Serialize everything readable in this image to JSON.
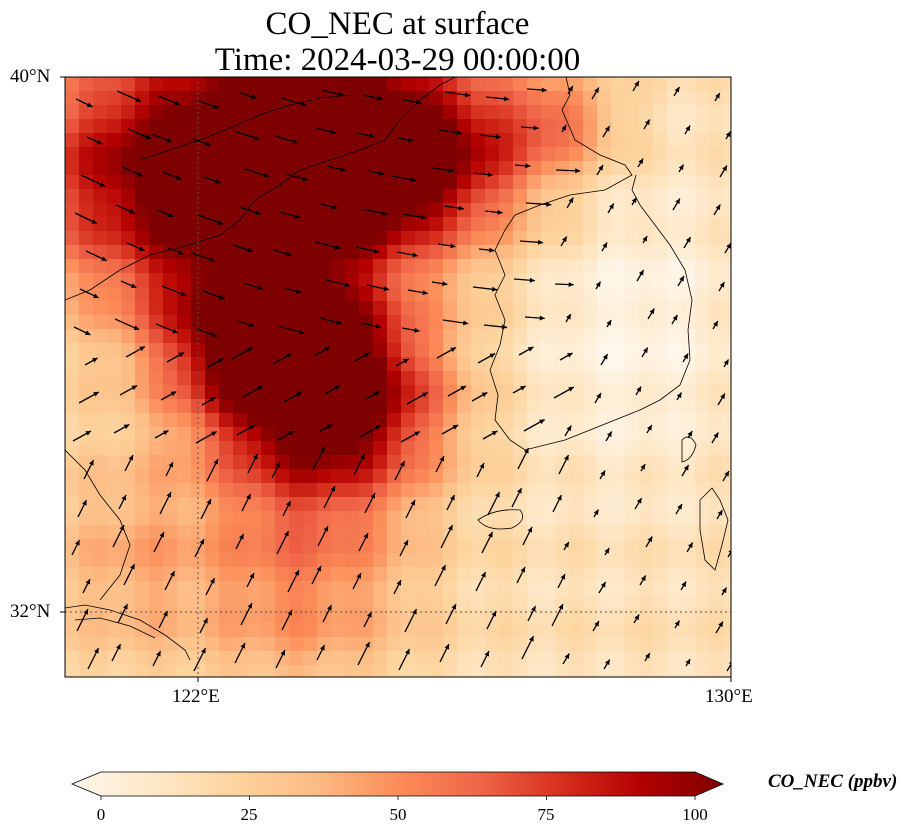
{
  "title": {
    "line1": "CO_NEC at surface",
    "line2": "Time: 2024-03-29 00:00:00"
  },
  "map": {
    "lat_labels": [
      "40°N",
      "32°N"
    ],
    "lon_labels": [
      "122°E",
      "130°E"
    ],
    "extent": {
      "lon_min": 120,
      "lon_max": 130,
      "lat_min": 31,
      "lat_max": 40
    },
    "gridlines": {
      "lon": 122,
      "lat": 32,
      "style": "dotted"
    },
    "field_description": "CO concentration, high values (dark red) over the Yellow Sea, Bohai and northern China; low values (pale) over Korea and the East Sea",
    "colormap": "OrRd",
    "colormap_stops": [
      "#fff7ec",
      "#fee8c8",
      "#fdd49e",
      "#fdbb84",
      "#fc8d59",
      "#ef6548",
      "#d7301f",
      "#b30000",
      "#7f0000"
    ]
  },
  "colorbar": {
    "label": "CO_NEC (ppbv)",
    "ticks": [
      "0",
      "25",
      "50",
      "75",
      "100"
    ],
    "min": 0,
    "max": 100,
    "extend": "both"
  },
  "chart_data": {
    "type": "heatmap",
    "title": "CO_NEC at surface\nTime: 2024-03-29 00:00:00",
    "xlabel": "",
    "ylabel": "",
    "x_ticks": [
      "122°E",
      "130°E"
    ],
    "y_ticks": [
      "40°N",
      "32°N"
    ],
    "value_range": [
      0,
      100
    ],
    "units": "ppbv"
  }
}
